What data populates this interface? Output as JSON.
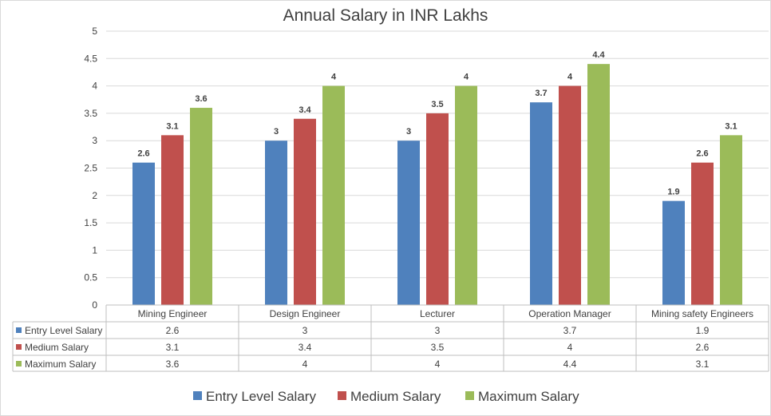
{
  "chart_data": {
    "type": "bar",
    "title": "Annual Salary in INR Lakhs",
    "xlabel": "",
    "ylabel": "",
    "ylim": [
      0,
      5
    ],
    "yticks": [
      "0",
      "0.5",
      "1",
      "1.5",
      "2",
      "2.5",
      "3",
      "3.5",
      "4",
      "4.5",
      "5"
    ],
    "grid": true,
    "legend_position": "bottom",
    "categories": [
      "Mining Engineer",
      "Design Engineer",
      "Lecturer",
      "Operation Manager",
      "Mining safety Engineers"
    ],
    "series": [
      {
        "name": "Entry Level Salary",
        "color": "#4F81BD",
        "values": [
          2.6,
          3,
          3,
          3.7,
          1.9
        ],
        "labels": [
          "2.6",
          "3",
          "3",
          "3.7",
          "1.9"
        ]
      },
      {
        "name": "Medium Salary",
        "color": "#C0504D",
        "values": [
          3.1,
          3.4,
          3.5,
          4,
          2.6
        ],
        "labels": [
          "3.1",
          "3.4",
          "3.5",
          "4",
          "2.6"
        ]
      },
      {
        "name": "Maximum Salary",
        "color": "#9BBB59",
        "values": [
          3.6,
          4,
          4,
          4.4,
          3.1
        ],
        "labels": [
          "3.6",
          "4",
          "4",
          "4.4",
          "3.1"
        ]
      }
    ],
    "data_table": true
  }
}
